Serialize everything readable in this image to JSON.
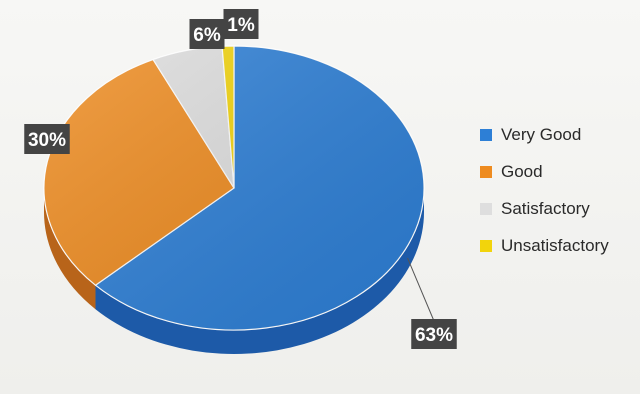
{
  "chart_data": {
    "type": "pie",
    "style": "3d",
    "categories": [
      "Very Good",
      "Good",
      "Satisfactory",
      "Unsatisfactory"
    ],
    "values": [
      63,
      30,
      6,
      1
    ],
    "data_labels": [
      "63%",
      "30%",
      "6%",
      "1%"
    ],
    "colors": [
      "#2d7fd6",
      "#ee8b1f",
      "#dedede",
      "#f2d40c"
    ],
    "side_colors": [
      "#1d5aa8",
      "#b8641a",
      "#a9a9a9",
      "#b9a009"
    ],
    "label_bg": "#444444",
    "legend_position": "right",
    "title": ""
  }
}
